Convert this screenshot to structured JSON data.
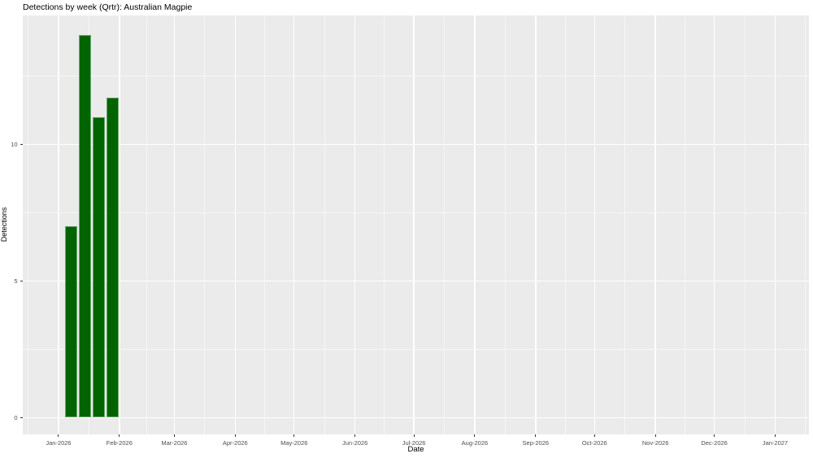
{
  "chart_data": {
    "type": "bar",
    "title": "Detections by week (Qrtr): Australian Magpie",
    "xlabel": "Date",
    "ylabel": "Detections",
    "legend": "none",
    "grid": "on",
    "x_ticks": [
      {
        "label": "Jan-2026",
        "day": 0
      },
      {
        "label": "Feb-2026",
        "day": 31
      },
      {
        "label": "Mar-2026",
        "day": 59
      },
      {
        "label": "Apr-2026",
        "day": 90
      },
      {
        "label": "May-2026",
        "day": 120
      },
      {
        "label": "Jun-2026",
        "day": 151
      },
      {
        "label": "Jul-2026",
        "day": 181
      },
      {
        "label": "Aug-2026",
        "day": 212
      },
      {
        "label": "Sep-2026",
        "day": 243
      },
      {
        "label": "Oct-2026",
        "day": 273
      },
      {
        "label": "Nov-2026",
        "day": 304
      },
      {
        "label": "Dec-2026",
        "day": 334
      },
      {
        "label": "Jan-2027",
        "day": 365
      }
    ],
    "x_minor_days": [
      -15.5,
      15.5,
      45,
      74.5,
      105,
      135.5,
      166,
      196.5,
      227.5,
      258,
      288.5,
      319,
      349.5,
      380.5
    ],
    "y_ticks": [
      {
        "label": "0",
        "value": 0
      },
      {
        "label": "5",
        "value": 5
      },
      {
        "label": "10",
        "value": 10
      }
    ],
    "y_minor": [
      2.5,
      7.5,
      12.5
    ],
    "xlim_days": [
      -18.2,
      382.2
    ],
    "ylim": [
      -0.6,
      14.71
    ],
    "bar_width_days": 6.3,
    "bars": [
      {
        "week_start": "2026-01-04",
        "x_day": 6.5,
        "value": 7
      },
      {
        "week_start": "2026-01-11",
        "x_day": 13.5,
        "value": 14
      },
      {
        "week_start": "2026-01-18",
        "x_day": 20.5,
        "value": 11
      },
      {
        "week_start": "2026-01-25",
        "x_day": 27.5,
        "value": 11.7
      }
    ],
    "colors": {
      "bar_fill": "#006400",
      "panel_bg": "#ebebeb",
      "grid": "#ffffff",
      "tick_mark": "#333333",
      "tick_label": "#4d4d4d",
      "title_text": "#000000",
      "page_bg": "#ffffff"
    }
  }
}
